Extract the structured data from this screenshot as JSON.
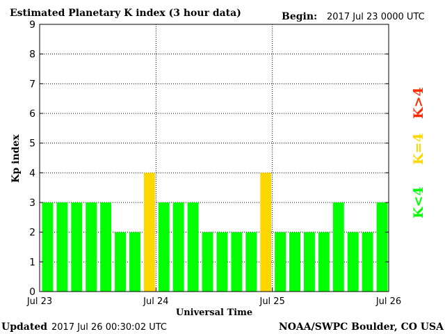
{
  "header": {
    "title": "Estimated Planetary K index (3 hour data)",
    "begin_label": "Begin:",
    "begin_value": "2017 Jul 23 0000 UTC"
  },
  "footer": {
    "updated_label": "Updated",
    "updated_value": "2017 Jul 26 00:30:02 UTC",
    "source": "NOAA/SWPC Boulder, CO USA"
  },
  "colors": {
    "below_4": "#00ff00",
    "equal_4": "#ffd700",
    "above_4": "#ff2a00"
  },
  "chart_data": {
    "type": "bar",
    "title": "Estimated Planetary K index (3 hour data)",
    "xlabel": "Universal Time",
    "ylabel": "Kp index",
    "ylim": [
      0,
      9
    ],
    "yticks": [
      "0",
      "1",
      "2",
      "3",
      "4",
      "5",
      "6",
      "7",
      "8",
      "9"
    ],
    "xticks": [
      "Jul 23",
      "Jul 24",
      "Jul 25",
      "Jul 26"
    ],
    "grid": true,
    "values": [
      3,
      3,
      3,
      3,
      3,
      2,
      2,
      4,
      3,
      3,
      3,
      2,
      2,
      2,
      2,
      4,
      2,
      2,
      2,
      2,
      3,
      2,
      2,
      3
    ],
    "legend": {
      "placement": "right",
      "entries": [
        {
          "label": "K<4",
          "color": "#00ff00"
        },
        {
          "label": "K=4",
          "color": "#ffd700"
        },
        {
          "label": "K>4",
          "color": "#ff2a00"
        }
      ]
    }
  }
}
